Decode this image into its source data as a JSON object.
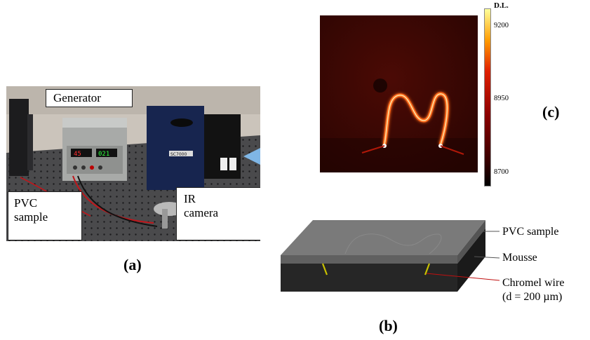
{
  "panel_a": {
    "caption": "(a)",
    "callouts": {
      "generator": "Generator",
      "pvc_sample": "PVC\nsample",
      "ir_camera": "IR\ncamera"
    },
    "generator_display_left": "45",
    "generator_display_right": "021",
    "camera_brand": "SC7000"
  },
  "panel_b": {
    "caption": "(b)",
    "labels": {
      "pvc_sample": "PVC sample",
      "mousse": "Mousse",
      "chromel_wire": "Chromel wire",
      "diameter": "(d = 200 µm)"
    }
  },
  "panel_c": {
    "caption": "(c)",
    "colorbar": {
      "title": "D.L.",
      "ticks": [
        "9200",
        "8950",
        "8700"
      ],
      "colors": [
        "#000000",
        "#8b0000",
        "#e02000",
        "#ff9a00",
        "#ffff9a"
      ]
    }
  }
}
